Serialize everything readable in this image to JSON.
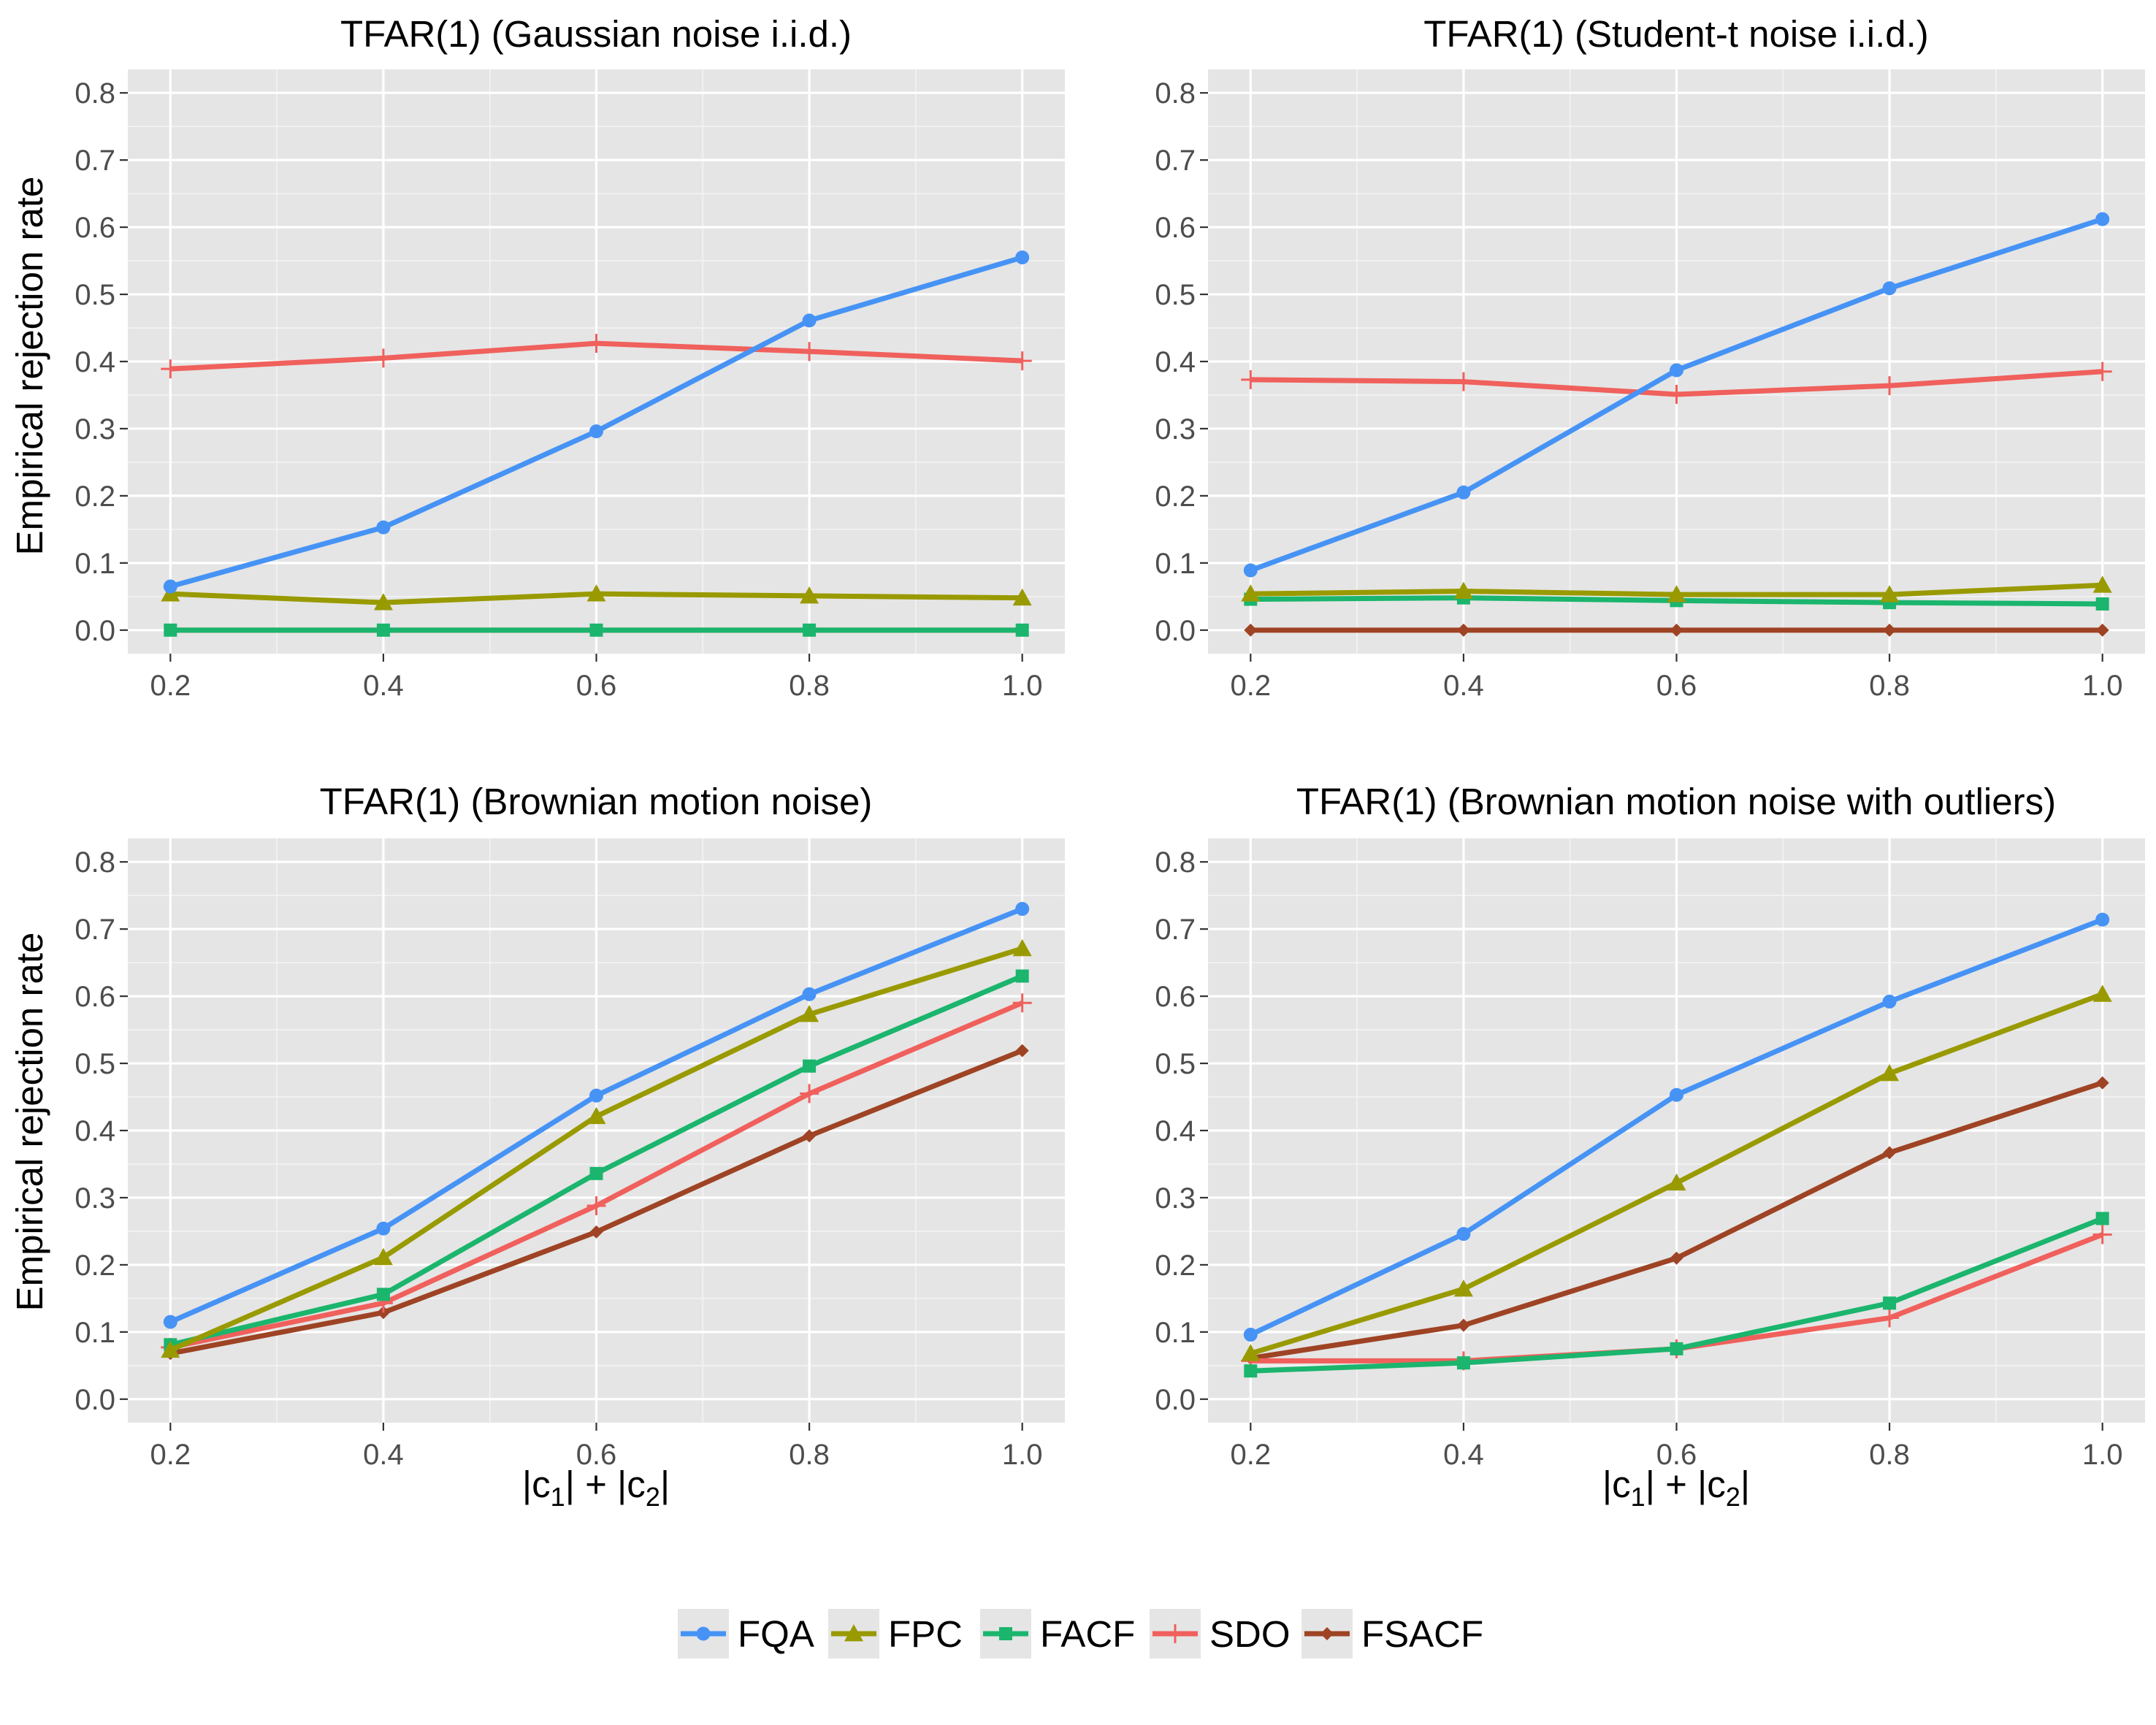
{
  "chart_data": {
    "type": "line",
    "layout": "2x2 facets",
    "xlabel": {
      "prefix": "|c",
      "sub1": "1",
      "mid": "| + |c",
      "sub2": "2",
      "suffix": "|"
    },
    "ylabel": "Empirical rejection rate",
    "x": [
      0.2,
      0.4,
      0.6,
      0.8,
      1.0
    ],
    "x_tick_labels": [
      "0.2",
      "0.4",
      "0.6",
      "0.8",
      "1.0"
    ],
    "y_tick_labels": [
      "0.0",
      "0.1",
      "0.2",
      "0.3",
      "0.4",
      "0.5",
      "0.6",
      "0.7",
      "0.8"
    ],
    "xlim": [
      0.16,
      1.04
    ],
    "ylim": [
      -0.035,
      0.835
    ],
    "legend": {
      "position": "bottom",
      "entries": [
        {
          "name": "FQA",
          "color": "#4693f5",
          "marker": "circle"
        },
        {
          "name": "FPC",
          "color": "#999a00",
          "marker": "triangle"
        },
        {
          "name": "FACF",
          "color": "#1bb56d",
          "marker": "square"
        },
        {
          "name": "SDO",
          "color": "#f0605c",
          "marker": "plus"
        },
        {
          "name": "FSACF",
          "color": "#9e4324",
          "marker": "diamond"
        }
      ]
    },
    "panels": [
      {
        "title": "TFAR(1) (Gaussian noise i.i.d.)",
        "series": [
          {
            "name": "FQA",
            "values": [
              0.065,
              0.153,
              0.296,
              0.461,
              0.555
            ]
          },
          {
            "name": "FPC",
            "values": [
              0.054,
              0.041,
              0.054,
              0.051,
              0.048
            ]
          },
          {
            "name": "FACF",
            "values": [
              0.0,
              0.0,
              0.0,
              0.0,
              0.0
            ]
          },
          {
            "name": "SDO",
            "values": [
              0.389,
              0.405,
              0.427,
              0.415,
              0.401
            ]
          },
          {
            "name": "FSACF",
            "values": [
              0.0,
              0.0,
              0.0,
              0.0,
              0.0
            ]
          }
        ]
      },
      {
        "title": "TFAR(1) (Student-t noise i.i.d.)",
        "series": [
          {
            "name": "FQA",
            "values": [
              0.089,
              0.205,
              0.387,
              0.509,
              0.612
            ]
          },
          {
            "name": "FPC",
            "values": [
              0.054,
              0.058,
              0.053,
              0.053,
              0.067
            ]
          },
          {
            "name": "FACF",
            "values": [
              0.046,
              0.048,
              0.044,
              0.041,
              0.039
            ]
          },
          {
            "name": "SDO",
            "values": [
              0.373,
              0.37,
              0.351,
              0.364,
              0.385
            ]
          },
          {
            "name": "FSACF",
            "values": [
              0.0,
              0.0,
              0.0,
              0.0,
              0.0
            ]
          }
        ]
      },
      {
        "title": "TFAR(1) (Brownian motion noise)",
        "series": [
          {
            "name": "FQA",
            "values": [
              0.115,
              0.254,
              0.452,
              0.603,
              0.73
            ]
          },
          {
            "name": "FPC",
            "values": [
              0.073,
              0.211,
              0.421,
              0.573,
              0.671
            ]
          },
          {
            "name": "FACF",
            "values": [
              0.081,
              0.156,
              0.336,
              0.496,
              0.63
            ]
          },
          {
            "name": "SDO",
            "values": [
              0.077,
              0.143,
              0.288,
              0.455,
              0.59
            ]
          },
          {
            "name": "FSACF",
            "values": [
              0.068,
              0.129,
              0.249,
              0.392,
              0.519
            ]
          }
        ]
      },
      {
        "title": "TFAR(1) (Brownian motion noise with outliers)",
        "series": [
          {
            "name": "FQA",
            "values": [
              0.096,
              0.246,
              0.453,
              0.592,
              0.714
            ]
          },
          {
            "name": "FPC",
            "values": [
              0.068,
              0.164,
              0.322,
              0.485,
              0.603
            ]
          },
          {
            "name": "FACF",
            "values": [
              0.042,
              0.054,
              0.075,
              0.143,
              0.269
            ]
          },
          {
            "name": "SDO",
            "values": [
              0.057,
              0.057,
              0.075,
              0.121,
              0.245
            ]
          },
          {
            "name": "FSACF",
            "values": [
              0.061,
              0.11,
              0.21,
              0.367,
              0.471
            ]
          }
        ]
      }
    ]
  }
}
